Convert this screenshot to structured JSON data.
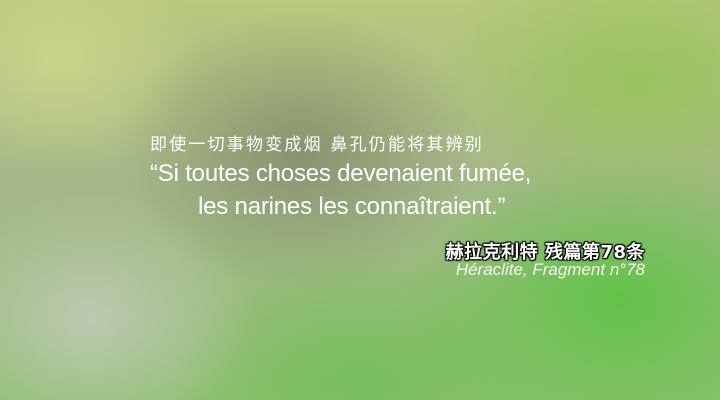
{
  "quote": {
    "chinese": "即使一切事物变成烟  鼻孔仍能将其辨别",
    "french_line1": "“Si toutes choses devenaient fumée,",
    "french_line2": "les narines les connaîtraient.”"
  },
  "attribution": {
    "chinese": "赫拉克利特  残篇第78条",
    "french": "Héraclite, Fragment n°78"
  }
}
